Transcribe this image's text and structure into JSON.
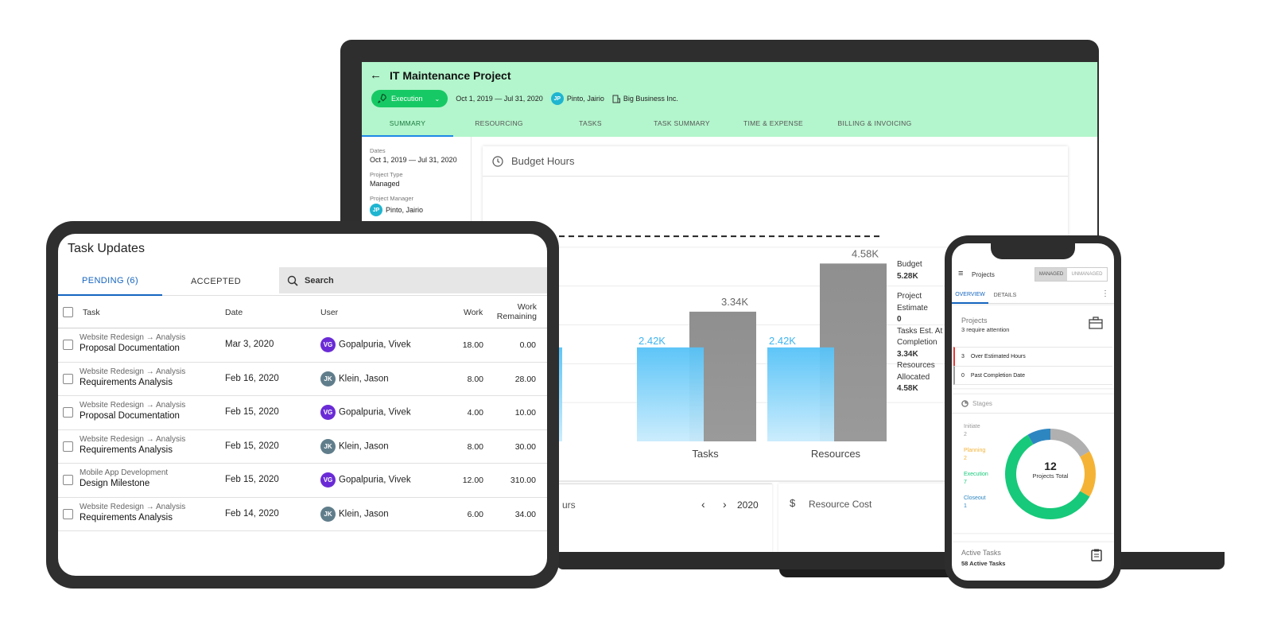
{
  "laptop": {
    "project_title": "IT Maintenance Project",
    "status": "Execution",
    "date_range": "Oct 1, 2019 — Jul 31, 2020",
    "manager_initials": "JP",
    "manager_name": "Pinto, Jairio",
    "client": "Big Business Inc.",
    "tabs": [
      "SUMMARY",
      "RESOURCING",
      "TASKS",
      "TASK SUMMARY",
      "TIME & EXPENSE",
      "BILLING & INVOICING"
    ],
    "side": {
      "dates_label": "Dates",
      "dates_value": "Oct 1, 2019 — Jul 31, 2020",
      "type_label": "Project Type",
      "type_value": "Managed",
      "manager_label": "Project Manager",
      "manager_initials": "JP",
      "manager_value": "Pinto, Jairio"
    },
    "budget_card_title": "Budget Hours",
    "legend": [
      {
        "label": "Budget",
        "value": "5.28K"
      },
      {
        "label": "Project Estimate",
        "value": "0"
      },
      {
        "label": "Tasks Est. At Completion",
        "value": "3.34K"
      },
      {
        "label": "Resources Allocated",
        "value": "4.58K"
      }
    ],
    "bottom_left_title": "urs",
    "bottom_year": "2020",
    "bottom_right_title": "Resource Cost",
    "colors": {
      "header_bg": "#b3f5cc",
      "status": "#17c964"
    }
  },
  "chart_data": {
    "type": "bar",
    "title": "Budget Hours",
    "categories": [
      "ects",
      "Tasks",
      "Resources"
    ],
    "series": [
      {
        "name": "Budget",
        "values": [
          null,
          2.42,
          2.42
        ]
      },
      {
        "name": "Estimate",
        "values": [
          null,
          3.34,
          4.58
        ]
      }
    ],
    "data_labels": {
      "blue": [
        "",
        "2.42K",
        "2.42K"
      ],
      "gray": [
        "",
        "3.34K",
        "4.58K"
      ]
    },
    "budget_line": 5.28,
    "ylim": [
      0,
      6
    ]
  },
  "tablet": {
    "title": "Task Updates",
    "tab_pending": "PENDING (6)",
    "tab_accepted": "ACCEPTED",
    "search_label": "Search",
    "columns": {
      "task": "Task",
      "date": "Date",
      "user": "User",
      "work": "Work",
      "work_remaining_1": "Work",
      "work_remaining_2": "Remaining"
    },
    "rows": [
      {
        "path_a": "Website Redesign",
        "path_b": "Analysis",
        "task": "Proposal Documentation",
        "date": "Mar 3, 2020",
        "initials": "VG",
        "user": "Gopalpuria, Vivek",
        "work": "18.00",
        "remaining": "0.00"
      },
      {
        "path_a": "Website Redesign",
        "path_b": "Analysis",
        "task": "Requirements Analysis",
        "date": "Feb 16, 2020",
        "initials": "JK",
        "user": "Klein, Jason",
        "work": "8.00",
        "remaining": "28.00"
      },
      {
        "path_a": "Website Redesign",
        "path_b": "Analysis",
        "task": "Proposal Documentation",
        "date": "Feb 15, 2020",
        "initials": "VG",
        "user": "Gopalpuria, Vivek",
        "work": "4.00",
        "remaining": "10.00"
      },
      {
        "path_a": "Website Redesign",
        "path_b": "Analysis",
        "task": "Requirements Analysis",
        "date": "Feb 15, 2020",
        "initials": "JK",
        "user": "Klein, Jason",
        "work": "8.00",
        "remaining": "30.00"
      },
      {
        "path_a": "Mobile App Development",
        "path_b": "",
        "task": "Design Milestone",
        "date": "Feb 15, 2020",
        "initials": "VG",
        "user": "Gopalpuria, Vivek",
        "work": "12.00",
        "remaining": "310.00"
      },
      {
        "path_a": "Website Redesign",
        "path_b": "Analysis",
        "task": "Requirements Analysis",
        "date": "Feb 14, 2020",
        "initials": "JK",
        "user": "Klein, Jason",
        "work": "6.00",
        "remaining": "34.00"
      }
    ]
  },
  "phone": {
    "title": "Projects",
    "toggle_managed": "MANAGED",
    "toggle_unmanaged": "UNMANAGED",
    "tab_overview": "OVERVIEW",
    "tab_details": "DETAILS",
    "projects_title": "Projects",
    "projects_sub": "3 require attention",
    "alerts": [
      {
        "count": "3",
        "label": "Over Estimated Hours",
        "color": "#e53935"
      },
      {
        "count": "0",
        "label": "Past Completion Date",
        "color": "#9e9e9e"
      }
    ],
    "stages_title": "Stages",
    "stages": [
      {
        "label": "Initiate",
        "count": "2",
        "color": "#b0b0b0"
      },
      {
        "label": "Planning",
        "count": "2",
        "color": "#f5b335"
      },
      {
        "label": "Execution",
        "count": "7",
        "color": "#17c97a"
      },
      {
        "label": "Closeout",
        "count": "1",
        "color": "#2e86c1"
      }
    ],
    "donut_total": "12",
    "donut_label": "Projects Total",
    "active_title": "Active Tasks",
    "active_sub": "58 Active Tasks"
  }
}
